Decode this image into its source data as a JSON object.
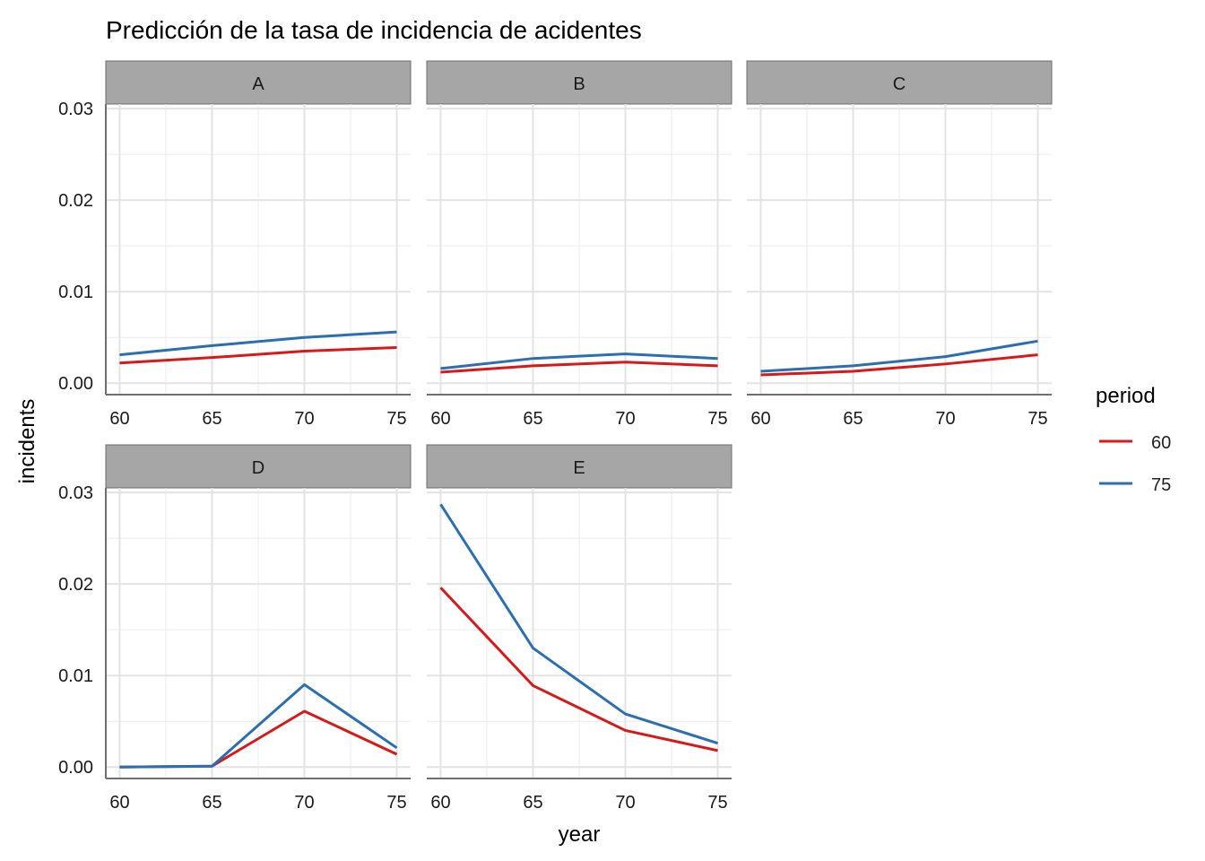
{
  "chart_data": {
    "type": "line",
    "title": "Predicción de la tasa de incidencia de acidentes",
    "xlabel": "year",
    "ylabel": "incidents",
    "x": [
      60,
      65,
      70,
      75
    ],
    "xticks": [
      "60",
      "65",
      "70",
      "75"
    ],
    "yticks": [
      "0.00",
      "0.01",
      "0.02",
      "0.03"
    ],
    "ylim": [
      0,
      0.03
    ],
    "grid": true,
    "legend": {
      "title": "period",
      "placement": "right",
      "entries": [
        "60",
        "75"
      ]
    },
    "colors": {
      "60": "#D7191C",
      "75": "#2C6FB0"
    },
    "panels": [
      {
        "label": "A",
        "series": [
          {
            "name": "60",
            "values": [
              0.0022,
              0.0028,
              0.0035,
              0.0039
            ]
          },
          {
            "name": "75",
            "values": [
              0.0031,
              0.0041,
              0.005,
              0.0056
            ]
          }
        ]
      },
      {
        "label": "B",
        "series": [
          {
            "name": "60",
            "values": [
              0.0012,
              0.0019,
              0.0023,
              0.0019
            ]
          },
          {
            "name": "75",
            "values": [
              0.0016,
              0.0027,
              0.0032,
              0.0027
            ]
          }
        ]
      },
      {
        "label": "C",
        "series": [
          {
            "name": "60",
            "values": [
              0.0009,
              0.0013,
              0.0021,
              0.0031
            ]
          },
          {
            "name": "75",
            "values": [
              0.0013,
              0.0019,
              0.0029,
              0.0046
            ]
          }
        ]
      },
      {
        "label": "D",
        "series": [
          {
            "name": "60",
            "values": [
              0.0,
              0.0001,
              0.0061,
              0.0014
            ]
          },
          {
            "name": "75",
            "values": [
              0.0,
              0.0001,
              0.009,
              0.0021
            ]
          }
        ]
      },
      {
        "label": "E",
        "series": [
          {
            "name": "60",
            "values": [
              0.0196,
              0.0089,
              0.004,
              0.0018
            ]
          },
          {
            "name": "75",
            "values": [
              0.0287,
              0.013,
              0.0058,
              0.0026
            ]
          }
        ]
      }
    ]
  }
}
